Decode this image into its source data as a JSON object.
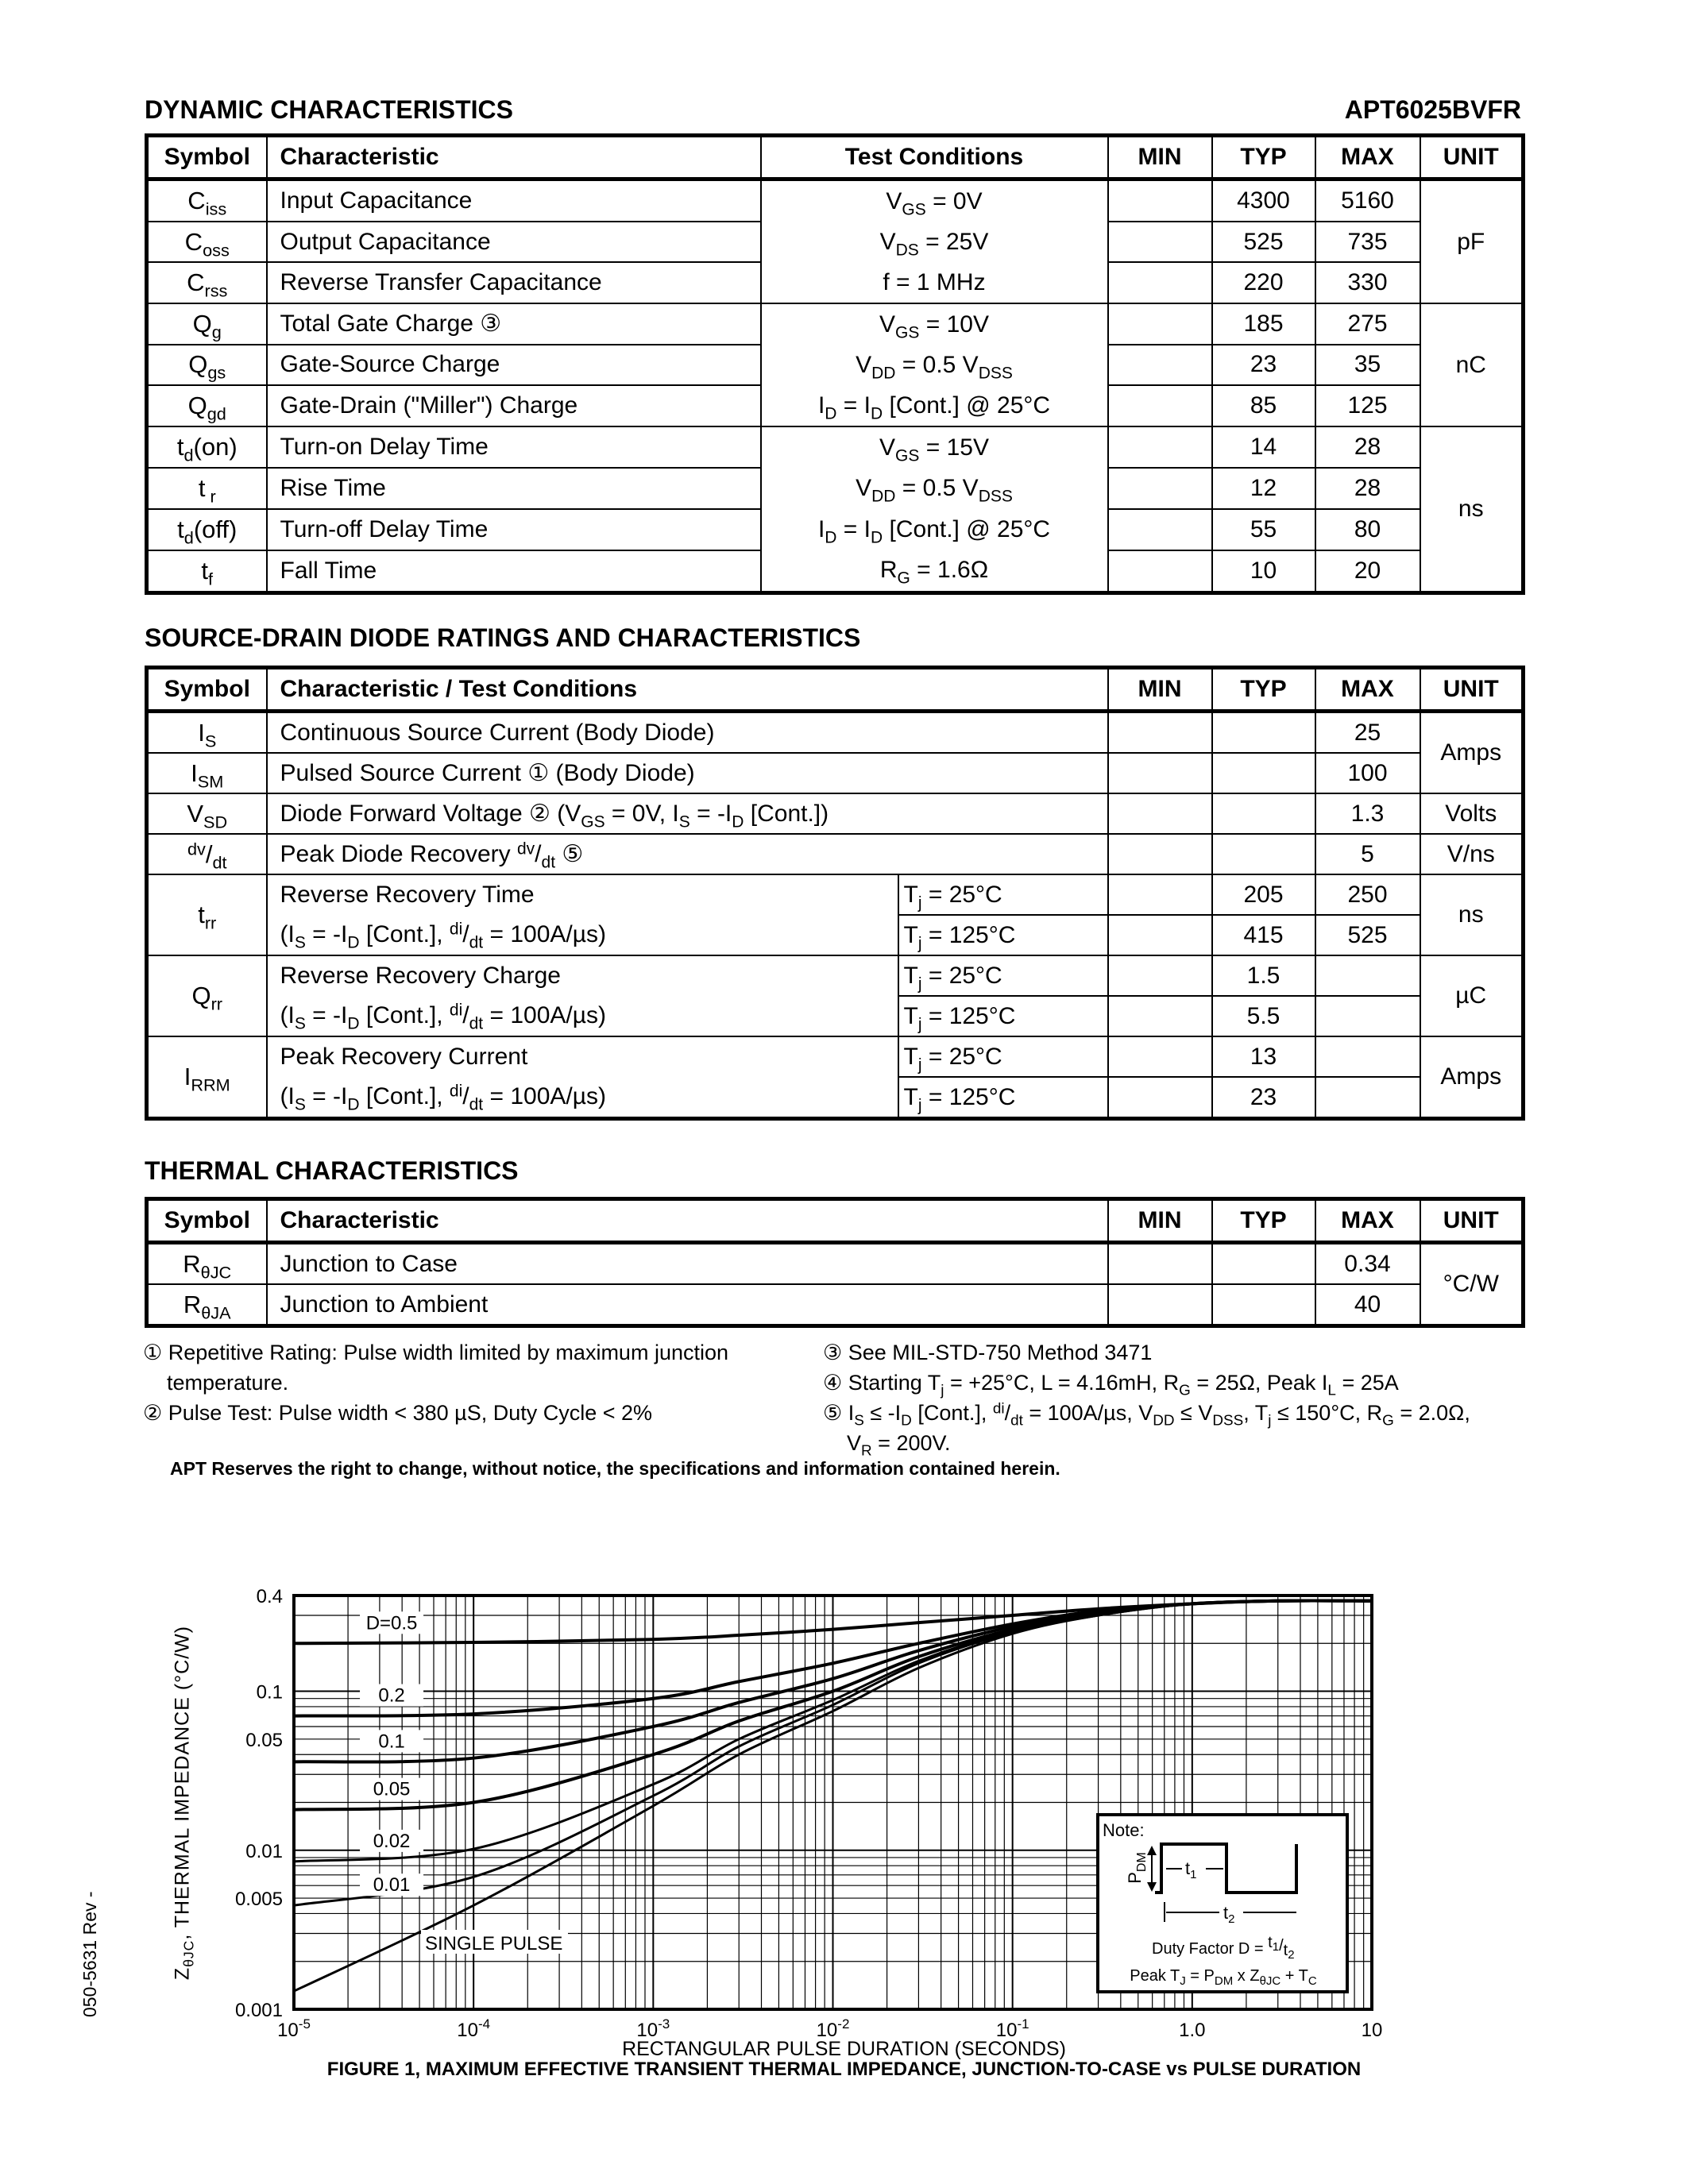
{
  "header": {
    "section1_title": "DYNAMIC CHARACTERISTICS",
    "part_number": "APT6025BVFR"
  },
  "table1": {
    "headers": [
      "Symbol",
      "Characteristic",
      "Test Conditions",
      "MIN",
      "TYP",
      "MAX",
      "UNIT"
    ],
    "groups": [
      {
        "conditions": [
          [
            "V",
            {
              "sub": "GS"
            },
            " = 0V"
          ],
          [
            "V",
            {
              "sub": "DS"
            },
            " = 25V"
          ],
          [
            "f = 1 MHz"
          ]
        ],
        "unit": "pF",
        "rows": [
          {
            "sym": [
              "C",
              {
                "sub": "iss"
              }
            ],
            "char": "Input Capacitance",
            "min": "",
            "typ": "4300",
            "max": "5160"
          },
          {
            "sym": [
              "C",
              {
                "sub": "oss"
              }
            ],
            "char": "Output Capacitance",
            "min": "",
            "typ": "525",
            "max": "735"
          },
          {
            "sym": [
              "C",
              {
                "sub": "rss"
              }
            ],
            "char": "Reverse Transfer Capacitance",
            "min": "",
            "typ": "220",
            "max": "330"
          }
        ]
      },
      {
        "conditions": [
          [
            "V",
            {
              "sub": "GS"
            },
            " = 10V"
          ],
          [
            "V",
            {
              "sub": "DD"
            },
            " = 0.5 V",
            {
              "sub": "DSS"
            }
          ],
          [
            "I",
            {
              "sub": "D"
            },
            " = I",
            {
              "sub": "D"
            },
            " [Cont.] @ 25°C"
          ]
        ],
        "unit": "nC",
        "rows": [
          {
            "sym": [
              "Q",
              {
                "sub": "g"
              }
            ],
            "char": "Total Gate Charge ③",
            "min": "",
            "typ": "185",
            "max": "275"
          },
          {
            "sym": [
              "Q",
              {
                "sub": "gs"
              }
            ],
            "char": "Gate-Source Charge",
            "min": "",
            "typ": "23",
            "max": "35"
          },
          {
            "sym": [
              "Q",
              {
                "sub": "gd"
              }
            ],
            "char": "Gate-Drain (\"Miller\") Charge",
            "min": "",
            "typ": "85",
            "max": "125"
          }
        ]
      },
      {
        "conditions": [
          [
            "V",
            {
              "sub": "GS"
            },
            " = 15V"
          ],
          [
            "V",
            {
              "sub": "DD"
            },
            " = 0.5 V",
            {
              "sub": "DSS"
            }
          ],
          [
            "I",
            {
              "sub": "D"
            },
            " = I",
            {
              "sub": "D"
            },
            " [Cont.] @ 25°C"
          ],
          [
            "R",
            {
              "sub": "G"
            },
            " = 1.6Ω"
          ]
        ],
        "unit": "ns",
        "rows": [
          {
            "sym": [
              "t",
              {
                "sub": "d"
              },
              "(on)"
            ],
            "char": "Turn-on Delay Time",
            "min": "",
            "typ": "14",
            "max": "28"
          },
          {
            "sym": [
              "t",
              {
                "sub": " r"
              }
            ],
            "char": "Rise Time",
            "min": "",
            "typ": "12",
            "max": "28"
          },
          {
            "sym": [
              "t",
              {
                "sub": "d"
              },
              "(off)"
            ],
            "char": "Turn-off Delay Time",
            "min": "",
            "typ": "55",
            "max": "80"
          },
          {
            "sym": [
              "t",
              {
                "sub": "f"
              }
            ],
            "char": "Fall Time",
            "min": "",
            "typ": "10",
            "max": "20"
          }
        ]
      }
    ]
  },
  "section2_title": "SOURCE-DRAIN DIODE RATINGS AND CHARACTERISTICS",
  "table2": {
    "headers": [
      "Symbol",
      "Characteristic / Test Conditions",
      "MIN",
      "TYP",
      "MAX",
      "UNIT"
    ],
    "groups": [
      {
        "unit": "Amps",
        "rows": [
          {
            "sym": [
              "I",
              {
                "sub": "S"
              }
            ],
            "char": [
              "Continuous Source Current  (Body Diode)"
            ],
            "min": "",
            "typ": "",
            "max": "25"
          },
          {
            "sym": [
              "I",
              {
                "sub": "SM"
              }
            ],
            "char": [
              "Pulsed Source Current ① (Body Diode)"
            ],
            "min": "",
            "typ": "",
            "max": "100"
          }
        ]
      },
      {
        "unit": "Volts",
        "rows": [
          {
            "sym": [
              "V",
              {
                "sub": "SD"
              }
            ],
            "char": [
              "Diode Forward Voltage ② (V",
              {
                "sub": "GS"
              },
              " = 0V, I",
              {
                "sub": "S"
              },
              " = -I",
              {
                "sub": "D"
              },
              " [Cont.])"
            ],
            "min": "",
            "typ": "",
            "max": "1.3"
          }
        ]
      },
      {
        "unit": "V/ns",
        "rows": [
          {
            "sym": [
              {
                "sup": "dv"
              },
              "/",
              {
                "sub": "dt"
              }
            ],
            "char": [
              "Peak Diode Recovery ",
              {
                "sup": "dv"
              },
              "/",
              {
                "sub": "dt"
              },
              " ⑤"
            ],
            "min": "",
            "typ": "",
            "max": "5"
          }
        ]
      },
      {
        "unit": "ns",
        "sym": [
          "t",
          {
            "sub": "rr"
          }
        ],
        "char": [
          [
            "Reverse Recovery Time"
          ],
          [
            "(I",
            {
              "sub": "S"
            },
            " = -I",
            {
              "sub": "D"
            },
            " [Cont.], ",
            {
              "sup": "di"
            },
            "/",
            {
              "sub": "dt"
            },
            " = 100A/µs)"
          ]
        ],
        "rows": [
          {
            "cond": [
              "T",
              {
                "sub": "j"
              },
              " = 25°C"
            ],
            "min": "",
            "typ": "205",
            "max": "250"
          },
          {
            "cond": [
              "T",
              {
                "sub": "j"
              },
              " = 125°C"
            ],
            "min": "",
            "typ": "415",
            "max": "525"
          }
        ]
      },
      {
        "unit": "µC",
        "sym": [
          "Q",
          {
            "sub": "rr"
          }
        ],
        "char": [
          [
            "Reverse Recovery Charge"
          ],
          [
            "(I",
            {
              "sub": "S"
            },
            " = -I",
            {
              "sub": "D"
            },
            " [Cont.], ",
            {
              "sup": "di"
            },
            "/",
            {
              "sub": "dt"
            },
            " = 100A/µs)"
          ]
        ],
        "rows": [
          {
            "cond": [
              "T",
              {
                "sub": "j"
              },
              " = 25°C"
            ],
            "min": "",
            "typ": "1.5",
            "max": ""
          },
          {
            "cond": [
              "T",
              {
                "sub": "j"
              },
              " = 125°C"
            ],
            "min": "",
            "typ": "5.5",
            "max": ""
          }
        ]
      },
      {
        "unit": "Amps",
        "sym": [
          "I",
          {
            "sub": "RRM"
          }
        ],
        "char": [
          [
            "Peak Recovery Current"
          ],
          [
            "(I",
            {
              "sub": "S"
            },
            " = -I",
            {
              "sub": "D"
            },
            " [Cont.], ",
            {
              "sup": "di"
            },
            "/",
            {
              "sub": "dt"
            },
            " = 100A/µs)"
          ]
        ],
        "rows": [
          {
            "cond": [
              "T",
              {
                "sub": "j"
              },
              " = 25°C"
            ],
            "min": "",
            "typ": "13",
            "max": ""
          },
          {
            "cond": [
              "T",
              {
                "sub": "j"
              },
              " = 125°C"
            ],
            "min": "",
            "typ": "23",
            "max": ""
          }
        ]
      }
    ]
  },
  "section3_title": "THERMAL CHARACTERISTICS",
  "table3": {
    "headers": [
      "Symbol",
      "Characteristic",
      "MIN",
      "TYP",
      "MAX",
      "UNIT"
    ],
    "unit": "°C/W",
    "rows": [
      {
        "sym": [
          "R",
          {
            "sub": "θJC"
          }
        ],
        "char": "Junction to Case",
        "min": "",
        "typ": "",
        "max": "0.34"
      },
      {
        "sym": [
          "R",
          {
            "sub": "θJA"
          }
        ],
        "char": "Junction to Ambient",
        "min": "",
        "typ": "",
        "max": "40"
      }
    ]
  },
  "footnotes": {
    "left": [
      [
        "① Repetitive Rating: Pulse width limited by maximum junction"
      ],
      [
        "    temperature."
      ],
      [
        "② Pulse Test: Pulse width < 380 µS, Duty Cycle < 2%"
      ]
    ],
    "right": [
      [
        "③ See MIL-STD-750 Method 3471"
      ],
      [
        "④ Starting T",
        {
          "sub": "j"
        },
        " = +25°C, L = 4.16mH, R",
        {
          "sub": "G"
        },
        " = 25Ω, Peak I",
        {
          "sub": "L"
        },
        " = 25A"
      ],
      [
        "⑤ I",
        {
          "sub": "S"
        },
        " ≤ -I",
        {
          "sub": "D"
        },
        " [Cont.], ",
        {
          "sup": "di"
        },
        "/",
        {
          "sub": "dt"
        },
        " = 100A/µs, V",
        {
          "sub": "DD"
        },
        " ≤ V",
        {
          "sub": "DSS"
        },
        ", T",
        {
          "sub": "j"
        },
        " ≤ 150°C, R",
        {
          "sub": "G"
        },
        " = 2.0Ω,"
      ],
      [
        "    V",
        {
          "sub": "R"
        },
        " = 200V."
      ]
    ]
  },
  "disclaimer": "APT Reserves the right to change, without notice, the specifications and information contained herein.",
  "side_text": "050-5631 Rev -",
  "chart_data": {
    "type": "line",
    "title": "FIGURE 1, MAXIMUM EFFECTIVE TRANSIENT THERMAL IMPEDANCE, JUNCTION-TO-CASE vs PULSE DURATION",
    "xlabel": "RECTANGULAR PULSE DURATION (SECONDS)",
    "ylabel": [
      "Z",
      {
        "sub": "θJC"
      },
      ", THERMAL IMPEDANCE (°C/W)"
    ],
    "xscale": "log",
    "yscale": "log",
    "xlim": [
      1e-05,
      10
    ],
    "ylim": [
      0.001,
      0.4
    ],
    "grid": true,
    "xticks": [
      {
        "b": "10",
        "e": "-5",
        "v": 1e-05
      },
      {
        "b": "10",
        "e": "-4",
        "v": 0.0001
      },
      {
        "b": "10",
        "e": "-3",
        "v": 0.001
      },
      {
        "b": "10",
        "e": "-2",
        "v": 0.01
      },
      {
        "b": "10",
        "e": "-1",
        "v": 0.1
      },
      {
        "b": "1.0",
        "e": "",
        "v": 1
      },
      {
        "b": "10",
        "e": "",
        "v": 10
      }
    ],
    "yticks": [
      {
        "t": "0.4",
        "v": 0.4
      },
      {
        "t": "0.1",
        "v": 0.1
      },
      {
        "t": "0.05",
        "v": 0.05
      },
      {
        "t": "0.01",
        "v": 0.01
      },
      {
        "t": "0.005",
        "v": 0.005
      },
      {
        "t": "0.001",
        "v": 0.001
      }
    ],
    "x": [
      1e-05,
      0.0001,
      0.001,
      0.003,
      0.01,
      0.03,
      0.1,
      0.3,
      1,
      3,
      10
    ],
    "series": [
      {
        "name": "D=0.5",
        "values": [
          0.2,
          0.203,
          0.212,
          0.225,
          0.245,
          0.27,
          0.3,
          0.33,
          0.355,
          0.37,
          0.37
        ]
      },
      {
        "name": "0.2",
        "values": [
          0.07,
          0.072,
          0.09,
          0.115,
          0.15,
          0.2,
          0.265,
          0.32,
          0.355,
          0.37,
          0.37
        ]
      },
      {
        "name": "0.1",
        "values": [
          0.036,
          0.038,
          0.06,
          0.085,
          0.12,
          0.18,
          0.255,
          0.315,
          0.355,
          0.37,
          0.37
        ]
      },
      {
        "name": "0.05",
        "values": [
          0.018,
          0.02,
          0.04,
          0.065,
          0.1,
          0.165,
          0.245,
          0.31,
          0.355,
          0.37,
          0.37
        ]
      },
      {
        "name": "0.02",
        "values": [
          0.0085,
          0.0102,
          0.026,
          0.05,
          0.088,
          0.155,
          0.24,
          0.305,
          0.355,
          0.37,
          0.37
        ]
      },
      {
        "name": "0.01",
        "values": [
          0.0045,
          0.0068,
          0.022,
          0.045,
          0.082,
          0.15,
          0.235,
          0.3,
          0.355,
          0.37,
          0.37
        ]
      },
      {
        "name": "SINGLE PULSE",
        "values": [
          0.0013,
          0.0045,
          0.019,
          0.04,
          0.075,
          0.14,
          0.23,
          0.3,
          0.355,
          0.37,
          0.37
        ]
      }
    ],
    "note": {
      "title": "Note:",
      "pdm": "P",
      "pdm_sub": "DM",
      "t1": "t",
      "t1_sub": "1",
      "t2": "t",
      "t2_sub": "2",
      "duty": "Duty Factor  D = ",
      "duty_num": "t",
      "duty_num_sub": "1",
      "duty_den": "t",
      "duty_den_sub": "2",
      "peak": [
        "Peak T",
        {
          "sub": "J"
        },
        " = P",
        {
          "sub": "DM"
        },
        " x Z",
        {
          "sub": "θJC"
        },
        " + T",
        {
          "sub": "C"
        }
      ]
    }
  }
}
